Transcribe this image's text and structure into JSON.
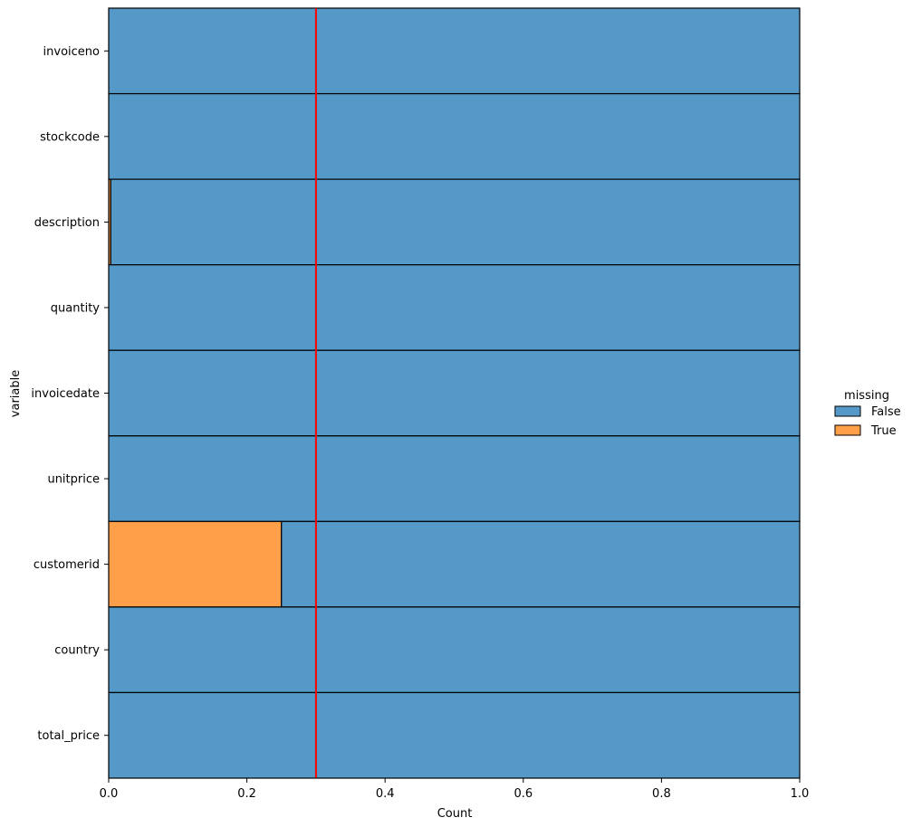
{
  "chart_data": {
    "type": "bar",
    "orientation": "horizontal",
    "stacked": true,
    "normalized": true,
    "xlabel": "Count",
    "ylabel": "variable",
    "xlim": [
      0,
      1
    ],
    "x_ticks": [
      "0.0",
      "0.2",
      "0.4",
      "0.6",
      "0.8",
      "1.0"
    ],
    "x_tick_values": [
      0,
      0.2,
      0.4,
      0.6,
      0.8,
      1.0
    ],
    "categories": [
      "invoiceno",
      "stockcode",
      "description",
      "quantity",
      "invoicedate",
      "unitprice",
      "customerid",
      "country",
      "total_price"
    ],
    "series": [
      {
        "name": "True",
        "color": "#ff9f4a",
        "values": [
          0,
          0,
          0.003,
          0,
          0,
          0,
          0.25,
          0,
          0
        ]
      },
      {
        "name": "False",
        "color": "#5499c7",
        "values": [
          1,
          1,
          0.997,
          1,
          1,
          1,
          0.75,
          1,
          1
        ]
      }
    ],
    "reference_line": {
      "x": 0.3,
      "color": "#ff0000"
    },
    "legend": {
      "title": "missing",
      "placement": "right",
      "entries": [
        {
          "label": "False",
          "color": "#5499c7"
        },
        {
          "label": "True",
          "color": "#ff9f4a"
        }
      ]
    },
    "grid": false
  }
}
